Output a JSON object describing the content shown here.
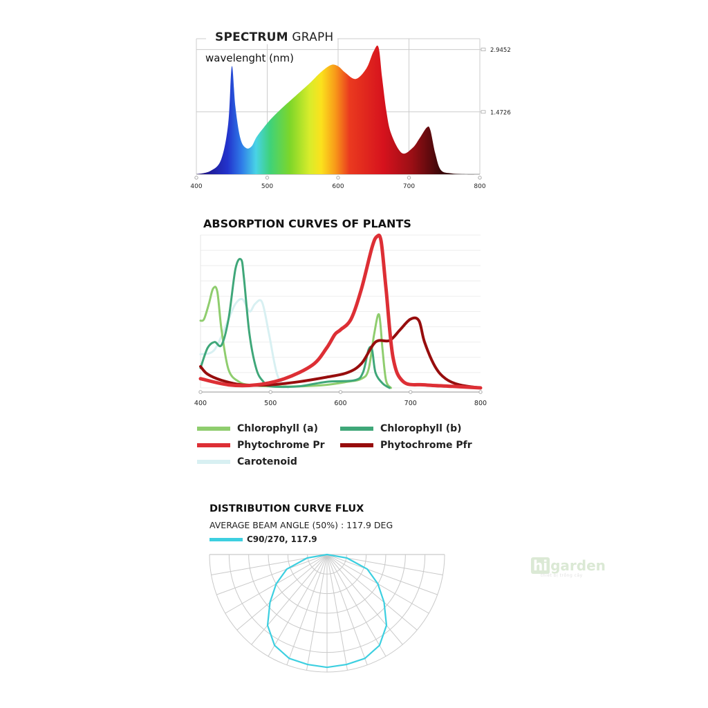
{
  "spectrum": {
    "title_bold": "SPECTRUM",
    "title_rest": "GRAPH",
    "subtitle": "wavelenght (nm)"
  },
  "absorption": {
    "title": "ABSORPTION CURVES OF PLANTS"
  },
  "distribution": {
    "title": "DISTRIBUTION CURVE FLUX",
    "subtitle": "AVERAGE BEAM ANGLE  (50%) : 117.9 DEG",
    "legend_label": "C90/270, 117.9"
  },
  "watermark": {
    "logo_hi": "hi",
    "logo_rest": "garden",
    "tagline": "thiết bị trồng cây"
  },
  "colors": {
    "chlorophyll_a": "#8fcd6e",
    "chlorophyll_b": "#3fa779",
    "phytochrome_pr": "#dd2f35",
    "phytochrome_pfr": "#970d0d",
    "carotenoid": "#d8f0f2",
    "beam": "#3ccfe0",
    "grid": "#cccccc"
  },
  "chart_data": [
    {
      "type": "area",
      "x_ticks": [
        400,
        500,
        600,
        700,
        800
      ],
      "y_ticks": [
        "1.4726",
        "2.9452"
      ],
      "xlim": [
        400,
        800
      ],
      "ylim": [
        0,
        3.2
      ],
      "grid": true,
      "fill": "rainbow gradient by wavelength",
      "series": [
        {
          "x": [
            400,
            420,
            435,
            445,
            450,
            455,
            462,
            470,
            478,
            485,
            495,
            505,
            520,
            540,
            560,
            575,
            590,
            600,
            610,
            625,
            640,
            650,
            657,
            662,
            668,
            675,
            690,
            705,
            715,
            725,
            730,
            737,
            745,
            760,
            780,
            800
          ],
          "values": [
            0.0,
            0.08,
            0.35,
            1.2,
            2.55,
            1.6,
            0.85,
            0.62,
            0.66,
            0.88,
            1.1,
            1.3,
            1.55,
            1.85,
            2.15,
            2.4,
            2.58,
            2.55,
            2.4,
            2.25,
            2.5,
            2.9,
            3.0,
            2.3,
            1.5,
            0.95,
            0.5,
            0.62,
            0.85,
            1.1,
            1.05,
            0.5,
            0.1,
            0.02,
            0.0,
            0.0
          ]
        }
      ]
    },
    {
      "type": "line",
      "x_ticks": [
        400,
        500,
        600,
        700,
        800
      ],
      "xlim": [
        400,
        800
      ],
      "ylim": [
        0,
        1
      ],
      "grid": true,
      "series": [
        {
          "name": "Chlorophyll (a)",
          "x": [
            400,
            405,
            412,
            418,
            424,
            430,
            440,
            455,
            470,
            500,
            540,
            580,
            610,
            630,
            640,
            648,
            655,
            660,
            665,
            672
          ],
          "values": [
            0.44,
            0.45,
            0.55,
            0.65,
            0.63,
            0.38,
            0.12,
            0.04,
            0.02,
            0.01,
            0.01,
            0.02,
            0.04,
            0.06,
            0.12,
            0.35,
            0.48,
            0.25,
            0.05,
            0.0
          ]
        },
        {
          "name": "Chlorophyll (b)",
          "x": [
            400,
            410,
            420,
            430,
            440,
            450,
            458,
            462,
            470,
            480,
            490,
            500,
            540,
            580,
            620,
            632,
            640,
            645,
            650,
            660,
            670
          ],
          "values": [
            0.13,
            0.26,
            0.3,
            0.28,
            0.45,
            0.78,
            0.84,
            0.72,
            0.35,
            0.12,
            0.04,
            0.01,
            0.01,
            0.04,
            0.05,
            0.1,
            0.25,
            0.25,
            0.1,
            0.03,
            0.0
          ]
        },
        {
          "name": "Phytochrome Pr",
          "x": [
            400,
            440,
            480,
            520,
            560,
            580,
            592,
            600,
            615,
            630,
            645,
            652,
            658,
            665,
            675,
            690,
            720,
            760,
            800
          ],
          "values": [
            0.06,
            0.02,
            0.02,
            0.06,
            0.15,
            0.26,
            0.35,
            0.38,
            0.45,
            0.65,
            0.92,
            0.99,
            0.96,
            0.65,
            0.2,
            0.04,
            0.02,
            0.01,
            0.0
          ]
        },
        {
          "name": "Phytochrome Pfr",
          "x": [
            400,
            410,
            430,
            460,
            500,
            540,
            580,
            610,
            630,
            650,
            670,
            685,
            700,
            712,
            720,
            735,
            750,
            770,
            800
          ],
          "values": [
            0.14,
            0.09,
            0.05,
            0.02,
            0.02,
            0.04,
            0.07,
            0.1,
            0.16,
            0.3,
            0.31,
            0.38,
            0.45,
            0.44,
            0.3,
            0.14,
            0.06,
            0.02,
            0.0
          ]
        },
        {
          "name": "Carotenoid",
          "x": [
            400,
            420,
            440,
            450,
            460,
            470,
            478,
            488,
            498,
            510,
            525
          ],
          "values": [
            0.22,
            0.25,
            0.45,
            0.55,
            0.58,
            0.5,
            0.55,
            0.56,
            0.35,
            0.08,
            0.0
          ]
        }
      ]
    },
    {
      "type": "polar",
      "series": [
        {
          "name": "C90/270, 117.9",
          "angles_deg": [
            -90,
            -80,
            -70,
            -60,
            -50,
            -40,
            -30,
            -20,
            -10,
            0,
            10,
            20,
            30,
            40,
            50,
            60,
            70,
            80,
            90
          ],
          "values": [
            0.0,
            0.18,
            0.38,
            0.52,
            0.66,
            0.82,
            0.93,
            0.98,
            0.99,
            1.0,
            0.99,
            0.98,
            0.93,
            0.82,
            0.66,
            0.52,
            0.38,
            0.18,
            0.0
          ]
        }
      ]
    }
  ]
}
